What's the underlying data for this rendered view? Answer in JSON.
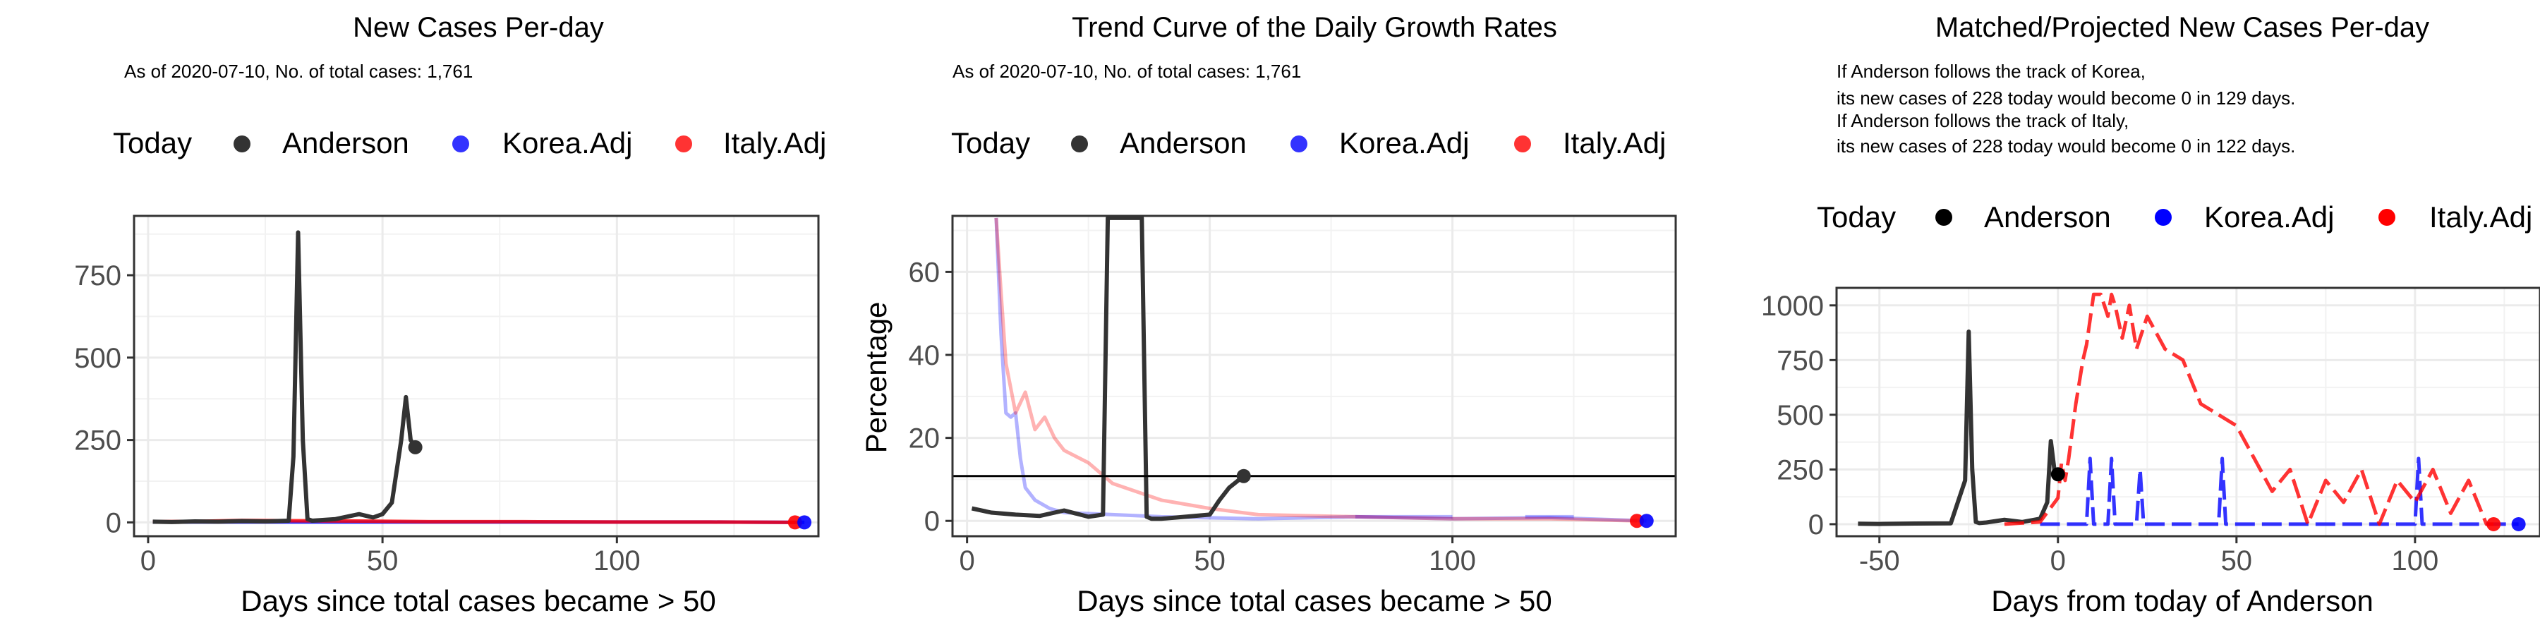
{
  "colors": {
    "today": "#333333",
    "anderson": "#333333",
    "korea": "#0000ff",
    "italy": "#ff0000",
    "grid": "#ebebeb",
    "axis": "#333333"
  },
  "chart_data": [
    {
      "type": "line",
      "title": "New Cases Per-day",
      "subtitle": "As of 2020-07-10, No. of total cases: 1,761",
      "xlabel": "Days since total cases became > 50",
      "ylabel": "",
      "xlim": [
        -3,
        143
      ],
      "ylim": [
        -42,
        930
      ],
      "xticks": [
        0,
        50,
        100
      ],
      "yticks": [
        0,
        250,
        500,
        750
      ],
      "grid": true,
      "legend": {
        "placement": "top",
        "items": [
          {
            "label": "Today",
            "swatch": false
          },
          {
            "label": "Anderson",
            "color": "#333333"
          },
          {
            "label": "Korea.Adj",
            "color": "#0000ff"
          },
          {
            "label": "Italy.Adj",
            "color": "#ff0000"
          }
        ]
      },
      "series": [
        {
          "name": "Korea.Adj",
          "color": "#0000ff",
          "x": [
            1,
            20,
            40,
            60,
            80,
            100,
            120,
            140
          ],
          "y": [
            1,
            1,
            1,
            1,
            1,
            1,
            1,
            0
          ]
        },
        {
          "name": "Italy.Adj",
          "color": "#ff0000",
          "x": [
            1,
            10,
            20,
            30,
            45,
            60,
            80,
            100,
            120,
            138
          ],
          "y": [
            2,
            3,
            6,
            5,
            4,
            2,
            2,
            1,
            1,
            0
          ]
        },
        {
          "name": "Anderson",
          "color": "#333333",
          "x": [
            1,
            5,
            10,
            15,
            20,
            25,
            30,
            31,
            32,
            33,
            34,
            35,
            40,
            45,
            48,
            50,
            52,
            54,
            55,
            56,
            57
          ],
          "y": [
            2,
            1,
            3,
            2,
            4,
            3,
            5,
            200,
            880,
            250,
            10,
            5,
            10,
            25,
            15,
            25,
            60,
            250,
            380,
            250,
            228
          ]
        }
      ],
      "points": [
        {
          "name": "Anderson",
          "x": 57,
          "y": 228,
          "color": "#333333"
        },
        {
          "name": "Italy.Adj",
          "x": 138,
          "y": 0,
          "color": "#ff0000"
        },
        {
          "name": "Korea.Adj",
          "x": 140,
          "y": 0,
          "color": "#0000ff"
        }
      ]
    },
    {
      "type": "line",
      "title": "Trend Curve of the Daily Growth Rates",
      "subtitle": "As of 2020-07-10, No. of total cases: 1,761",
      "xlabel": "Days since total cases became > 50",
      "ylabel": "Percentage",
      "xlim": [
        -3,
        146
      ],
      "ylim": [
        -3.7,
        73.5
      ],
      "xticks": [
        0,
        50,
        100
      ],
      "yticks": [
        0,
        20,
        40,
        60
      ],
      "hline": 10.8,
      "grid": true,
      "legend": {
        "placement": "top",
        "items": [
          {
            "label": "Today",
            "swatch": false
          },
          {
            "label": "Anderson",
            "color": "#333333"
          },
          {
            "label": "Korea.Adj",
            "color": "#0000ff"
          },
          {
            "label": "Italy.Adj",
            "color": "#ff0000"
          }
        ]
      },
      "series": [
        {
          "name": "Korea.Adj",
          "color": "#0000ff",
          "opacity": 0.3,
          "x": [
            6,
            7,
            8,
            9,
            10,
            11,
            12,
            14,
            17,
            20,
            30,
            40,
            60,
            80,
            100,
            120,
            140
          ],
          "y": [
            73,
            45,
            26,
            25,
            26,
            15,
            8,
            5,
            3,
            2,
            1.5,
            1,
            0.5,
            1,
            0.5,
            0.8,
            0
          ],
          "steps": [
            [
              80,
              100,
              1
            ],
            [
              115,
              125,
              1
            ]
          ]
        },
        {
          "name": "Italy.Adj",
          "color": "#ff0000",
          "opacity": 0.3,
          "x": [
            6,
            7,
            8,
            10,
            12,
            14,
            16,
            18,
            20,
            25,
            30,
            40,
            50,
            60,
            80,
            100,
            120,
            138
          ],
          "y": [
            73,
            55,
            38,
            26,
            31,
            22,
            25,
            20,
            17,
            14,
            9,
            5,
            3,
            1.5,
            1,
            0.5,
            0.5,
            0
          ]
        },
        {
          "name": "Anderson",
          "color": "#333333",
          "opacity": 1,
          "x": [
            1,
            5,
            10,
            15,
            20,
            25,
            28,
            29,
            30,
            35,
            36,
            37,
            38,
            40,
            45,
            50,
            52,
            54,
            57
          ],
          "y": [
            3,
            2,
            1.5,
            1.2,
            2.5,
            1,
            1.5,
            73,
            73,
            73,
            73,
            1,
            0.5,
            0.5,
            1,
            1.5,
            5,
            8,
            10.8
          ]
        }
      ],
      "points": [
        {
          "name": "Anderson",
          "x": 57,
          "y": 10.8,
          "color": "#333333"
        },
        {
          "name": "Italy.Adj",
          "x": 138,
          "y": 0,
          "color": "#ff0000"
        },
        {
          "name": "Korea.Adj",
          "x": 140,
          "y": 0,
          "color": "#0000ff"
        }
      ]
    },
    {
      "type": "line",
      "title": "Matched/Projected New Cases Per-day",
      "subtitle_lines": [
        "If Anderson follows the track of Korea,",
        "its new cases of 228 today would become 0 in 129 days.",
        "If Anderson follows the track of Italy,",
        "its new cases of 228 today would become 0 in 122 days."
      ],
      "xlabel": "Days from today of Anderson",
      "ylabel": "",
      "xlim": [
        -62,
        135
      ],
      "ylim": [
        -55,
        1080
      ],
      "xticks": [
        -50,
        0,
        50,
        100
      ],
      "yticks": [
        0,
        250,
        500,
        750,
        1000
      ],
      "grid": true,
      "legend": {
        "placement": "top",
        "items": [
          {
            "label": "Today",
            "swatch": false
          },
          {
            "label": "Anderson",
            "color": "#000000"
          },
          {
            "label": "Korea.Adj",
            "color": "#0000ff"
          },
          {
            "label": "Italy.Adj",
            "color": "#ff0000"
          }
        ]
      },
      "series": [
        {
          "name": "Anderson",
          "color": "#333333",
          "x": [
            -56,
            -50,
            -40,
            -30,
            -26,
            -25,
            -24,
            -23,
            -22,
            -20,
            -15,
            -10,
            -5,
            -3,
            -2,
            -1,
            0
          ],
          "y": [
            2,
            1,
            3,
            4,
            200,
            880,
            250,
            10,
            5,
            8,
            20,
            10,
            25,
            100,
            380,
            250,
            228
          ]
        },
        {
          "name": "Korea.Adj",
          "color": "#0000ff",
          "dashed": true,
          "x": [
            -5,
            0,
            5,
            8,
            9,
            10,
            14,
            15,
            16,
            20,
            22,
            23,
            24,
            28,
            30,
            40,
            45,
            46,
            47,
            55,
            60,
            70,
            80,
            90,
            100,
            101,
            102,
            110,
            120,
            125,
            129
          ],
          "y": [
            0,
            0,
            0,
            0,
            300,
            0,
            0,
            300,
            0,
            0,
            0,
            250,
            0,
            0,
            0,
            0,
            0,
            300,
            0,
            0,
            0,
            0,
            0,
            0,
            0,
            300,
            0,
            0,
            0,
            0,
            0
          ]
        },
        {
          "name": "Italy.Adj",
          "color": "#ff0000",
          "dashed": true,
          "x": [
            -15,
            -5,
            0,
            1,
            2,
            3,
            5,
            7,
            8,
            10,
            12,
            14,
            15,
            16,
            18,
            20,
            22,
            25,
            30,
            35,
            40,
            45,
            50,
            55,
            60,
            65,
            70,
            75,
            80,
            85,
            90,
            95,
            100,
            105,
            110,
            115,
            120,
            122
          ],
          "y": [
            0,
            10,
            120,
            280,
            200,
            300,
            550,
            750,
            820,
            1050,
            1050,
            950,
            1050,
            1000,
            850,
            1000,
            800,
            950,
            800,
            750,
            550,
            500,
            450,
            300,
            150,
            250,
            0,
            200,
            100,
            250,
            0,
            200,
            100,
            250,
            50,
            200,
            0,
            0
          ]
        }
      ],
      "points": [
        {
          "name": "Anderson",
          "x": 0,
          "y": 228,
          "color": "#000000"
        },
        {
          "name": "Italy.Adj",
          "x": 122,
          "y": 0,
          "color": "#ff0000"
        },
        {
          "name": "Korea.Adj",
          "x": 129,
          "y": 0,
          "color": "#0000ff"
        }
      ]
    }
  ]
}
